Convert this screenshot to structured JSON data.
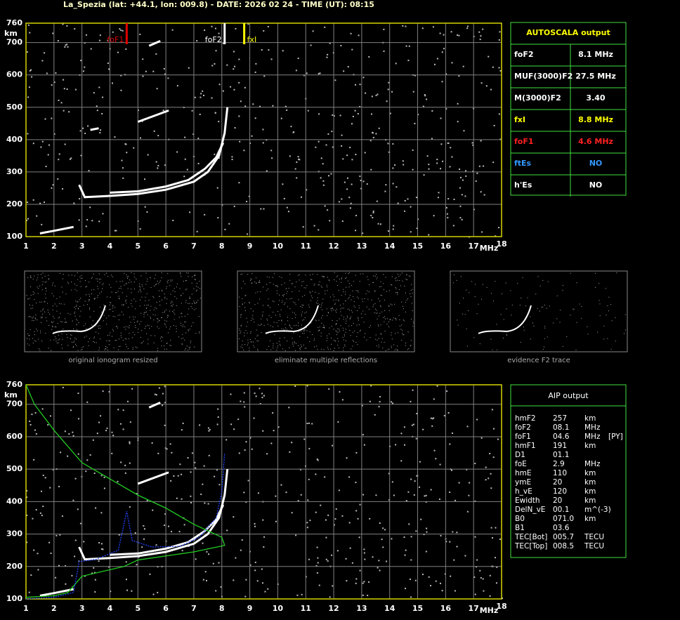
{
  "title": "La_Spezia (lat: +44.1, lon: 009.8) - DATE: 2026 02 24 - TIME (UT): 08:15",
  "chart_data": [
    {
      "type": "line",
      "x_label": "MHz",
      "y_label": "km",
      "xlim": [
        1,
        18
      ],
      "ylim": [
        100,
        760
      ],
      "xticks": [
        1,
        2,
        3,
        4,
        5,
        6,
        7,
        8,
        9,
        10,
        11,
        12,
        13,
        14,
        15,
        16,
        17,
        18
      ],
      "yticks": [
        100,
        200,
        300,
        400,
        500,
        600,
        700,
        760
      ],
      "grid": true,
      "series": [
        {
          "color": "#ffffff",
          "x": [
            1.5,
            2,
            2.7
          ],
          "values": [
            110,
            118,
            130
          ]
        },
        {
          "color": "#ffffff",
          "x": [
            2.9,
            3.1,
            4,
            5,
            6,
            7,
            7.5,
            7.9,
            8.1,
            8.2
          ],
          "values": [
            260,
            222,
            226,
            232,
            245,
            270,
            300,
            350,
            420,
            500
          ]
        },
        {
          "color": "#ffffff",
          "x": [
            4,
            5,
            6,
            6.8,
            7.4,
            7.8,
            8.05
          ],
          "values": [
            236,
            240,
            255,
            275,
            310,
            345,
            390
          ]
        },
        {
          "color": "#ffffff",
          "x": [
            3.3,
            3.6
          ],
          "values": [
            430,
            435
          ]
        },
        {
          "color": "#ffffff",
          "x": [
            5,
            6.1
          ],
          "values": [
            455,
            490
          ]
        },
        {
          "color": "#ffffff",
          "x": [
            5.4,
            5.8
          ],
          "values": [
            690,
            705
          ]
        }
      ],
      "markers": [
        {
          "label": "foF1",
          "value": 4.6,
          "color": "#e00000"
        },
        {
          "label": "foF2",
          "value": 8.1,
          "color": "#ffffff"
        },
        {
          "label": "fxI",
          "value": 8.8,
          "color": "#ffff00"
        }
      ]
    },
    {
      "type": "line",
      "x_label": "MHz",
      "y_label": "km",
      "xlim": [
        1,
        18
      ],
      "ylim": [
        100,
        760
      ],
      "xticks": [
        1,
        2,
        3,
        4,
        5,
        6,
        7,
        8,
        9,
        10,
        11,
        12,
        13,
        14,
        15,
        16,
        17,
        18
      ],
      "yticks": [
        100,
        200,
        300,
        400,
        500,
        600,
        700,
        760
      ],
      "grid": true,
      "series": [
        {
          "color": "#ffffff",
          "x": [
            1.5,
            2,
            2.7
          ],
          "values": [
            110,
            118,
            130
          ]
        },
        {
          "color": "#ffffff",
          "x": [
            2.9,
            3.1,
            4,
            5,
            6,
            7,
            7.5,
            7.9,
            8.1,
            8.2
          ],
          "values": [
            260,
            222,
            226,
            232,
            245,
            270,
            300,
            350,
            420,
            500
          ]
        },
        {
          "color": "#ffffff",
          "x": [
            4,
            5,
            6,
            6.8,
            7.4,
            7.8,
            8.05
          ],
          "values": [
            236,
            240,
            255,
            275,
            310,
            345,
            390
          ]
        },
        {
          "color": "#ffffff",
          "x": [
            5,
            6.1
          ],
          "values": [
            455,
            490
          ]
        },
        {
          "color": "#ffffff",
          "x": [
            5.4,
            5.8
          ],
          "values": [
            690,
            705
          ]
        },
        {
          "color": "#22cc22",
          "x": [
            1,
            1.3,
            2,
            3,
            4,
            5,
            6,
            7,
            8,
            8.1,
            7,
            5,
            4.5,
            4,
            3,
            2.7,
            2.5,
            2,
            1
          ],
          "values": [
            760,
            700,
            620,
            520,
            470,
            420,
            380,
            330,
            290,
            265,
            245,
            220,
            200,
            190,
            170,
            140,
            120,
            110,
            105
          ]
        },
        {
          "color": "#2244ff",
          "x": [
            1,
            2,
            2.7,
            2.9,
            3.5,
            4.3,
            4.6,
            4.8,
            5.5,
            6.5,
            7.2,
            7.8,
            8,
            8.1
          ],
          "values": [
            100,
            105,
            120,
            215,
            222,
            250,
            370,
            280,
            260,
            262,
            290,
            350,
            430,
            550
          ]
        }
      ]
    }
  ],
  "thumbnails": [
    "original ionogram resized",
    "eliminate multiple reflections",
    "evidence F2 trace"
  ],
  "autoscala": {
    "title": "AUTOSCALA output",
    "rows": [
      {
        "label": "foF2",
        "value": "8.1 MHz",
        "color": "#ffffff"
      },
      {
        "label": "MUF(3000)F2",
        "value": "27.5 MHz",
        "color": "#ffffff"
      },
      {
        "label": "M(3000)F2",
        "value": "3.40",
        "color": "#ffffff"
      },
      {
        "label": "fxI",
        "value": "8.8 MHz",
        "color": "#ffff00"
      },
      {
        "label": "foF1",
        "value": "4.6 MHz",
        "color": "#ff2020"
      },
      {
        "label": "ftEs",
        "value": "NO",
        "color": "#3399ff"
      },
      {
        "label": "h'Es",
        "value": "NO",
        "color": "#ffffff"
      }
    ]
  },
  "aip": {
    "title": "AIP output",
    "rows": [
      [
        "hmF2",
        "257",
        "km"
      ],
      [
        "foF2",
        "08.1",
        "MHz"
      ],
      [
        "foF1",
        "04.6",
        "MHz",
        "[PY]"
      ],
      [
        "hmF1",
        "191",
        "km"
      ],
      [
        "D1",
        "01.1"
      ],
      [
        "foE",
        "2.9",
        "MHz"
      ],
      [
        "hmE",
        "110",
        "km"
      ],
      [
        "ymE",
        "20",
        "km"
      ],
      [
        "h_vE",
        "120",
        "km"
      ],
      [
        "Ewidth",
        "20",
        "km"
      ],
      [
        "DelN_vE",
        "00.1",
        "m^(-3)"
      ],
      [
        "B0",
        "071.0",
        "km"
      ],
      [
        "B1",
        "03.6"
      ],
      [
        "TEC[Bot]",
        "005.7",
        "TECU"
      ],
      [
        "TEC[Top]",
        "008.5",
        "TECU"
      ]
    ]
  }
}
